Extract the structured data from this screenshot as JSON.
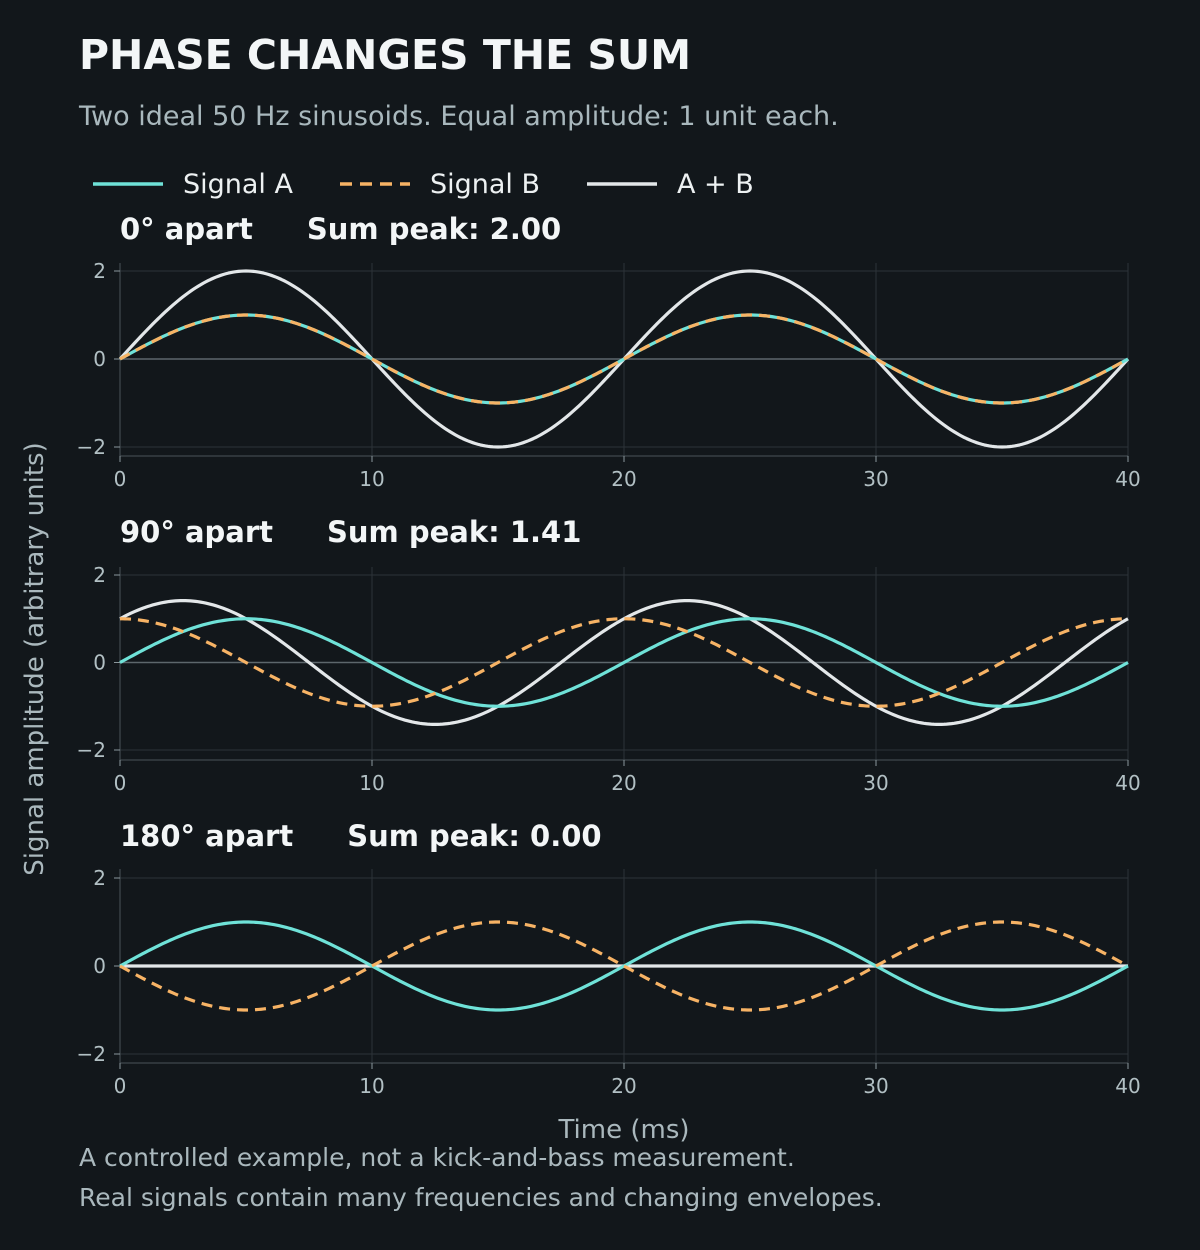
{
  "title": "PHASE CHANGES THE SUM",
  "subtitle": "Two ideal 50 Hz sinusoids. Equal amplitude: 1 unit each.",
  "legend": [
    {
      "label": "Signal A",
      "color": "#6fe2d8",
      "style": "solid"
    },
    {
      "label": "Signal B",
      "color": "#f7b365",
      "style": "dashed"
    },
    {
      "label": "A + B",
      "color": "#e3e7e9",
      "style": "solid"
    }
  ],
  "xlabel": "Time (ms)",
  "ylabel": "Signal amplitude (arbitrary units)",
  "footer": [
    "A controlled example, not a kick-and-bass measurement.",
    "Real signals contain many frequencies and changing envelopes."
  ],
  "colors": {
    "background": "#12171b",
    "grid": "#2c3338",
    "zero_line": "#5d676c",
    "signal_a": "#6fe2d8",
    "signal_b": "#f7b365",
    "sum": "#e3e7e9"
  },
  "chart_data": [
    {
      "type": "line",
      "panel_label": "0° apart",
      "peak_label": "Sum peak: 2.00",
      "phase_deg": 0,
      "frequency_hz": 50,
      "amplitude": 1,
      "sum_peak": 2.0,
      "xlim": [
        0,
        40
      ],
      "ylim": [
        -2,
        2
      ],
      "xticks": [
        0,
        10,
        20,
        30,
        40
      ],
      "yticks": [
        2,
        0,
        -2
      ],
      "ytick_labels": [
        "2",
        "0",
        "−2"
      ],
      "grid": true,
      "series": [
        {
          "name": "Signal A",
          "formula": "sin(2π·50·t)"
        },
        {
          "name": "Signal B",
          "formula": "sin(2π·50·t + 0°)"
        },
        {
          "name": "A + B",
          "formula": "A + B"
        }
      ]
    },
    {
      "type": "line",
      "panel_label": "90° apart",
      "peak_label": "Sum peak: 1.41",
      "phase_deg": 90,
      "frequency_hz": 50,
      "amplitude": 1,
      "sum_peak": 1.41,
      "xlim": [
        0,
        40
      ],
      "ylim": [
        -2,
        2
      ],
      "xticks": [
        0,
        10,
        20,
        30,
        40
      ],
      "yticks": [
        2,
        0,
        -2
      ],
      "ytick_labels": [
        "2",
        "0",
        "−2"
      ],
      "grid": true,
      "series": [
        {
          "name": "Signal A",
          "formula": "sin(2π·50·t)"
        },
        {
          "name": "Signal B",
          "formula": "sin(2π·50·t + 90°)"
        },
        {
          "name": "A + B",
          "formula": "A + B"
        }
      ]
    },
    {
      "type": "line",
      "panel_label": "180° apart",
      "peak_label": "Sum peak: 0.00",
      "phase_deg": 180,
      "frequency_hz": 50,
      "amplitude": 1,
      "sum_peak": 0.0,
      "xlim": [
        0,
        40
      ],
      "ylim": [
        -2,
        2
      ],
      "xticks": [
        0,
        10,
        20,
        30,
        40
      ],
      "yticks": [
        2,
        0,
        -2
      ],
      "ytick_labels": [
        "2",
        "0",
        "−2"
      ],
      "grid": true,
      "series": [
        {
          "name": "Signal A",
          "formula": "sin(2π·50·t)"
        },
        {
          "name": "Signal B",
          "formula": "sin(2π·50·t + 180°)"
        },
        {
          "name": "A + B",
          "formula": "A + B"
        }
      ]
    }
  ]
}
